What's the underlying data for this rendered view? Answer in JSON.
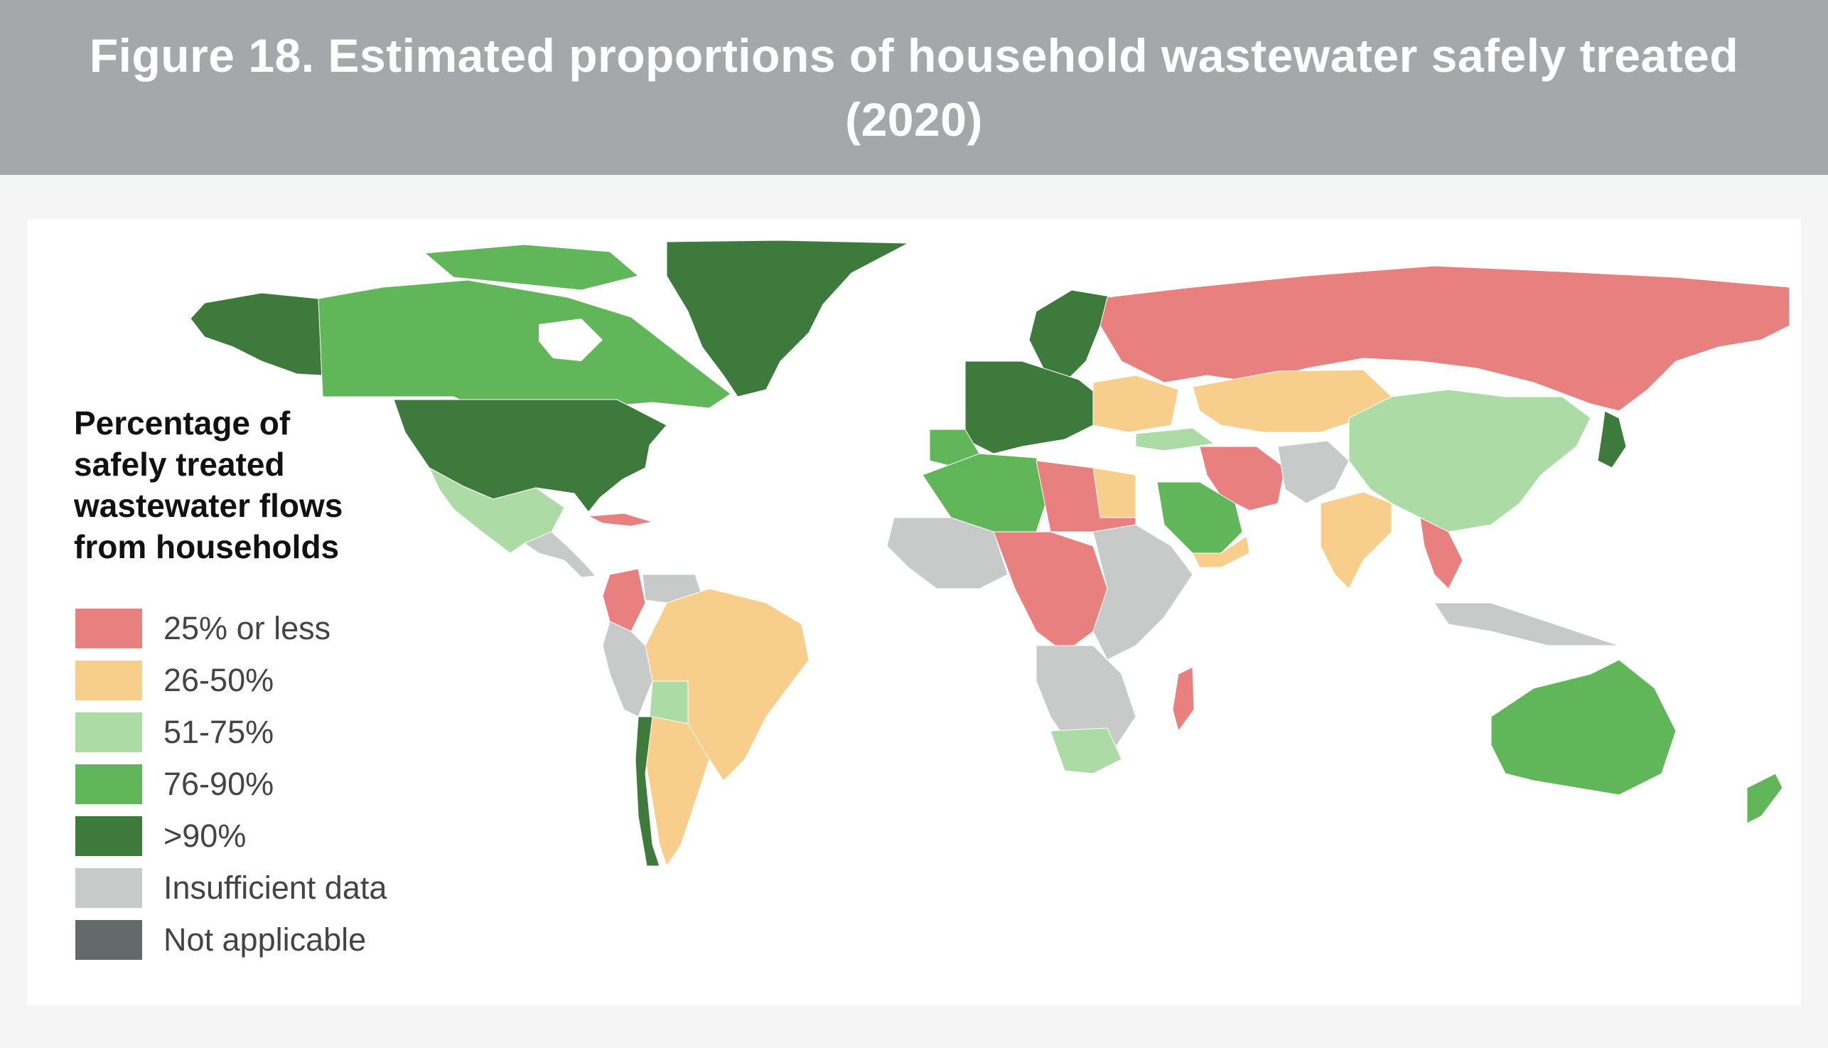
{
  "title": "Figure 18. Estimated proportions of household wastewater safely treated (2020)",
  "legend": {
    "title": "Percentage of safely treated wastewater flows from households",
    "items": [
      {
        "label": "25% or less",
        "color": "#e98080"
      },
      {
        "label": "26-50%",
        "color": "#f7ce8c"
      },
      {
        "label": "51-75%",
        "color": "#acdba6"
      },
      {
        "label": "76-90%",
        "color": "#61b65a"
      },
      {
        "label": ">90%",
        "color": "#3f7a3d"
      },
      {
        "label": "Insufficient data",
        "color": "#c7cac9"
      },
      {
        "label": "Not applicable",
        "color": "#626a6c"
      }
    ]
  }
}
